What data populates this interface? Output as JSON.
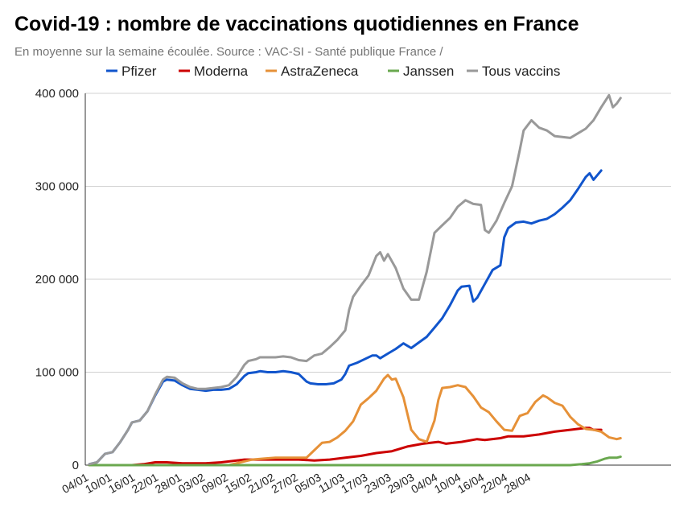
{
  "chart_data": {
    "type": "line",
    "title": "Covid-19 : nombre de vaccinations quotidiennes en France",
    "subtitle": "En moyenne sur la semaine écoulée. Source : VAC-SI - Santé publique France /",
    "ylim": [
      0,
      400000
    ],
    "y_ticks": [
      "0",
      "100 000",
      "200 000",
      "300 000",
      "400 000"
    ],
    "y_tick_values": [
      0,
      100000,
      200000,
      300000,
      400000
    ],
    "x_tick_labels": [
      "04/01",
      "10/01",
      "16/01",
      "22/01",
      "28/01",
      "03/02",
      "09/02",
      "15/02",
      "21/02",
      "27/02",
      "05/03",
      "11/03",
      "17/03",
      "23/03",
      "29/03",
      "04/04",
      "10/04",
      "16/04",
      "22/04",
      "28/04"
    ],
    "x_tick_days": [
      0,
      6,
      12,
      18,
      24,
      30,
      36,
      42,
      48,
      54,
      60,
      66,
      72,
      78,
      84,
      90,
      96,
      102,
      108,
      114
    ],
    "x_range_days": [
      -1,
      119
    ],
    "grid": true,
    "legend_position": "top",
    "series": [
      {
        "name": "Pfizer",
        "color": "#1155cc",
        "points": [
          [
            0,
            1000
          ],
          [
            2,
            3000
          ],
          [
            4,
            12000
          ],
          [
            6,
            14000
          ],
          [
            8,
            25000
          ],
          [
            10,
            38000
          ],
          [
            11,
            46000
          ],
          [
            13,
            48000
          ],
          [
            15,
            58000
          ],
          [
            17,
            75000
          ],
          [
            19,
            90000
          ],
          [
            20,
            92000
          ],
          [
            22,
            91000
          ],
          [
            24,
            86000
          ],
          [
            26,
            82000
          ],
          [
            28,
            81000
          ],
          [
            30,
            80000
          ],
          [
            32,
            81000
          ],
          [
            34,
            81000
          ],
          [
            36,
            82000
          ],
          [
            38,
            87000
          ],
          [
            40,
            96000
          ],
          [
            41,
            99000
          ],
          [
            43,
            100000
          ],
          [
            44,
            101000
          ],
          [
            46,
            100000
          ],
          [
            48,
            100000
          ],
          [
            50,
            101000
          ],
          [
            52,
            100000
          ],
          [
            54,
            98000
          ],
          [
            56,
            90000
          ],
          [
            57,
            88000
          ],
          [
            59,
            87000
          ],
          [
            61,
            87000
          ],
          [
            63,
            88000
          ],
          [
            65,
            92000
          ],
          [
            66,
            98000
          ],
          [
            67,
            107000
          ],
          [
            69,
            110000
          ],
          [
            71,
            114000
          ],
          [
            73,
            118000
          ],
          [
            74,
            118000
          ],
          [
            75,
            115000
          ],
          [
            77,
            120000
          ],
          [
            79,
            125000
          ],
          [
            81,
            131000
          ],
          [
            83,
            126000
          ],
          [
            85,
            132000
          ],
          [
            87,
            138000
          ],
          [
            89,
            148000
          ],
          [
            91,
            158000
          ],
          [
            93,
            172000
          ],
          [
            95,
            188000
          ],
          [
            96,
            192000
          ],
          [
            98,
            193000
          ],
          [
            99,
            176000
          ],
          [
            100,
            180000
          ],
          [
            102,
            195000
          ],
          [
            104,
            210000
          ],
          [
            106,
            215000
          ],
          [
            107,
            245000
          ],
          [
            108,
            255000
          ],
          [
            110,
            261000
          ],
          [
            112,
            262000
          ],
          [
            114,
            260000
          ],
          [
            116,
            263000
          ],
          [
            118,
            265000
          ],
          [
            120,
            270000
          ],
          [
            122,
            277000
          ],
          [
            124,
            285000
          ],
          [
            126,
            297000
          ],
          [
            128,
            310000
          ],
          [
            129,
            314000
          ],
          [
            130,
            307000
          ],
          [
            132,
            317000
          ]
        ]
      },
      {
        "name": "Moderna",
        "color": "#cc0000",
        "points": [
          [
            0,
            0
          ],
          [
            11,
            0
          ],
          [
            14,
            1000
          ],
          [
            17,
            3000
          ],
          [
            20,
            3000
          ],
          [
            24,
            2000
          ],
          [
            30,
            2000
          ],
          [
            34,
            3000
          ],
          [
            36,
            4000
          ],
          [
            40,
            6000
          ],
          [
            43,
            6000
          ],
          [
            48,
            6000
          ],
          [
            54,
            6000
          ],
          [
            58,
            5000
          ],
          [
            62,
            6000
          ],
          [
            66,
            8000
          ],
          [
            70,
            10000
          ],
          [
            74,
            13000
          ],
          [
            78,
            15000
          ],
          [
            82,
            20000
          ],
          [
            86,
            23000
          ],
          [
            90,
            25000
          ],
          [
            92,
            23000
          ],
          [
            96,
            25000
          ],
          [
            100,
            28000
          ],
          [
            102,
            27000
          ],
          [
            106,
            29000
          ],
          [
            108,
            31000
          ],
          [
            112,
            31000
          ],
          [
            116,
            33000
          ],
          [
            120,
            36000
          ],
          [
            124,
            38000
          ],
          [
            128,
            40000
          ],
          [
            129,
            40000
          ],
          [
            130,
            38000
          ],
          [
            132,
            38000
          ]
        ]
      },
      {
        "name": "AstraZeneca",
        "color": "#e69138",
        "points": [
          [
            0,
            0
          ],
          [
            36,
            0
          ],
          [
            38,
            2000
          ],
          [
            42,
            6000
          ],
          [
            45,
            7000
          ],
          [
            48,
            8000
          ],
          [
            52,
            8000
          ],
          [
            56,
            8000
          ],
          [
            58,
            16000
          ],
          [
            60,
            24000
          ],
          [
            62,
            25000
          ],
          [
            64,
            30000
          ],
          [
            66,
            37000
          ],
          [
            68,
            47000
          ],
          [
            70,
            65000
          ],
          [
            72,
            72000
          ],
          [
            74,
            80000
          ],
          [
            76,
            93000
          ],
          [
            77,
            97000
          ],
          [
            78,
            92000
          ],
          [
            79,
            93000
          ],
          [
            81,
            73000
          ],
          [
            83,
            38000
          ],
          [
            85,
            28000
          ],
          [
            87,
            25000
          ],
          [
            89,
            48000
          ],
          [
            90,
            70000
          ],
          [
            91,
            83000
          ],
          [
            93,
            84000
          ],
          [
            95,
            86000
          ],
          [
            97,
            84000
          ],
          [
            99,
            74000
          ],
          [
            101,
            62000
          ],
          [
            103,
            57000
          ],
          [
            105,
            47000
          ],
          [
            107,
            38000
          ],
          [
            109,
            37000
          ],
          [
            111,
            53000
          ],
          [
            113,
            56000
          ],
          [
            115,
            68000
          ],
          [
            117,
            75000
          ],
          [
            118,
            73000
          ],
          [
            120,
            67000
          ],
          [
            122,
            64000
          ],
          [
            124,
            52000
          ],
          [
            126,
            44000
          ],
          [
            128,
            39000
          ],
          [
            130,
            38000
          ],
          [
            132,
            36000
          ],
          [
            134,
            30000
          ],
          [
            136,
            28000
          ],
          [
            137,
            29000
          ]
        ]
      },
      {
        "name": "Janssen",
        "color": "#6aa84f",
        "points": [
          [
            0,
            0
          ],
          [
            124,
            0
          ],
          [
            127,
            1000
          ],
          [
            129,
            2000
          ],
          [
            131,
            4000
          ],
          [
            133,
            7000
          ],
          [
            134,
            8000
          ],
          [
            136,
            8000
          ],
          [
            137,
            9000
          ]
        ]
      },
      {
        "name": "Tous vaccins",
        "color": "#999999",
        "points": [
          [
            0,
            1000
          ],
          [
            2,
            3000
          ],
          [
            4,
            12000
          ],
          [
            6,
            14000
          ],
          [
            8,
            25000
          ],
          [
            10,
            38000
          ],
          [
            11,
            46000
          ],
          [
            13,
            48000
          ],
          [
            15,
            58000
          ],
          [
            17,
            76000
          ],
          [
            19,
            92000
          ],
          [
            20,
            95000
          ],
          [
            22,
            94000
          ],
          [
            24,
            88000
          ],
          [
            26,
            84000
          ],
          [
            28,
            82000
          ],
          [
            30,
            82000
          ],
          [
            32,
            83000
          ],
          [
            34,
            84000
          ],
          [
            36,
            86000
          ],
          [
            38,
            95000
          ],
          [
            40,
            108000
          ],
          [
            41,
            112000
          ],
          [
            43,
            114000
          ],
          [
            44,
            116000
          ],
          [
            46,
            116000
          ],
          [
            48,
            116000
          ],
          [
            50,
            117000
          ],
          [
            52,
            116000
          ],
          [
            54,
            113000
          ],
          [
            56,
            112000
          ],
          [
            58,
            118000
          ],
          [
            60,
            120000
          ],
          [
            62,
            127000
          ],
          [
            64,
            135000
          ],
          [
            66,
            145000
          ],
          [
            67,
            167000
          ],
          [
            68,
            181000
          ],
          [
            70,
            193000
          ],
          [
            72,
            204000
          ],
          [
            74,
            225000
          ],
          [
            75,
            229000
          ],
          [
            76,
            220000
          ],
          [
            77,
            227000
          ],
          [
            79,
            212000
          ],
          [
            81,
            190000
          ],
          [
            83,
            178000
          ],
          [
            85,
            178000
          ],
          [
            87,
            208000
          ],
          [
            89,
            250000
          ],
          [
            91,
            258000
          ],
          [
            93,
            266000
          ],
          [
            95,
            278000
          ],
          [
            97,
            285000
          ],
          [
            99,
            281000
          ],
          [
            101,
            280000
          ],
          [
            102,
            253000
          ],
          [
            103,
            250000
          ],
          [
            105,
            263000
          ],
          [
            107,
            282000
          ],
          [
            109,
            300000
          ],
          [
            111,
            339000
          ],
          [
            112,
            360000
          ],
          [
            114,
            371000
          ],
          [
            116,
            363000
          ],
          [
            118,
            360000
          ],
          [
            120,
            354000
          ],
          [
            122,
            353000
          ],
          [
            124,
            352000
          ],
          [
            126,
            357000
          ],
          [
            128,
            362000
          ],
          [
            130,
            371000
          ],
          [
            132,
            385000
          ],
          [
            134,
            398000
          ],
          [
            135,
            385000
          ],
          [
            136,
            389000
          ],
          [
            137,
            395000
          ]
        ]
      }
    ]
  }
}
